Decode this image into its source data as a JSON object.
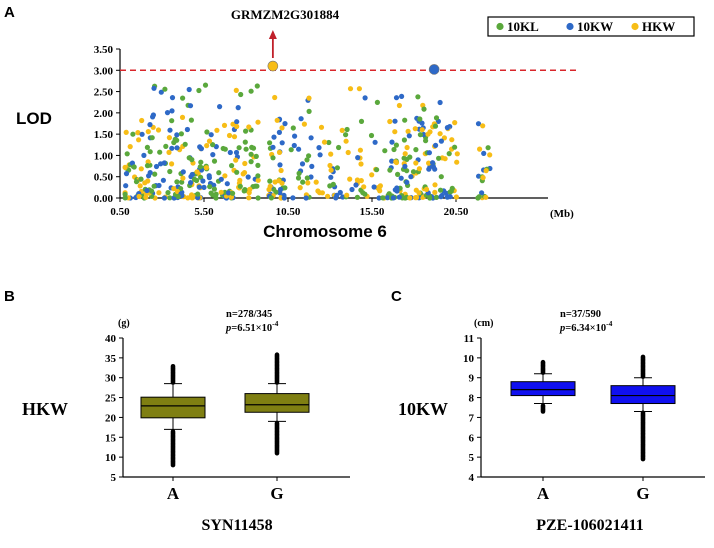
{
  "chart_data": [
    {
      "panel": "A",
      "type": "scatter",
      "title": "",
      "xlabel": "Chromosome 6",
      "x_unit": "(Mb)",
      "ylabel": "LOD",
      "xlim": [
        0.5,
        25.5
      ],
      "ylim": [
        0,
        3.5
      ],
      "x_ticks": [
        "0.50",
        "5.50",
        "10.50",
        "15.50",
        "20.50"
      ],
      "y_ticks": [
        "0.00",
        "0.50",
        "1.00",
        "1.50",
        "2.00",
        "2.50",
        "3.00",
        "3.50"
      ],
      "threshold": 3.0,
      "series": [
        {
          "name": "10KL",
          "color": "#5aa83c"
        },
        {
          "name": "10KW",
          "color": "#2e69c7"
        },
        {
          "name": "HKW",
          "color": "#f7bd16"
        }
      ],
      "highlight_points": [
        {
          "series": "HKW",
          "x": 9.6,
          "y": 3.1
        },
        {
          "series": "10KW",
          "x": 19.2,
          "y": 3.02
        }
      ],
      "annotation": {
        "label": "GRMZM2G301884",
        "x": 9.6
      }
    },
    {
      "panel": "B",
      "type": "box",
      "ylabel": "HKW",
      "unit": "(g)",
      "xlabel": "SYN11458",
      "ylim": [
        5,
        40
      ],
      "y_ticks": [
        "5",
        "10",
        "15",
        "20",
        "25",
        "30",
        "35",
        "40"
      ],
      "categories": [
        "A",
        "G"
      ],
      "n_label": "n=278/345",
      "p_label_prefix": "p",
      "p_label_value": "=6.51×10",
      "p_label_exp": "-4",
      "boxes": [
        {
          "category": "A",
          "whisker_low": 17,
          "q1": 19.9,
          "median": 22.9,
          "q3": 25.1,
          "whisker_high": 28.5
        },
        {
          "category": "G",
          "whisker_low": 19,
          "q1": 21.3,
          "median": 23.2,
          "q3": 26.0,
          "whisker_high": 28.5
        }
      ],
      "outlier_range": [
        {
          "category": "A",
          "low": [
            8,
            17
          ],
          "high": [
            28.5,
            33
          ]
        },
        {
          "category": "G",
          "low": [
            11,
            19
          ],
          "high": [
            28.5,
            36
          ]
        }
      ],
      "color": "#7f7f12"
    },
    {
      "panel": "C",
      "type": "box",
      "ylabel": "10KW",
      "unit": "(cm)",
      "xlabel": "PZE-106021411",
      "ylim": [
        4,
        11
      ],
      "y_ticks": [
        "4",
        "5",
        "6",
        "7",
        "8",
        "9",
        "10",
        "11"
      ],
      "categories": [
        "A",
        "G"
      ],
      "n_label": "n=37/590",
      "p_label_prefix": "p",
      "p_label_value": "=6.34×10",
      "p_label_exp": "-4",
      "boxes": [
        {
          "category": "A",
          "whisker_low": 7.7,
          "q1": 8.1,
          "median": 8.4,
          "q3": 8.8,
          "whisker_high": 9.2
        },
        {
          "category": "G",
          "whisker_low": 7.3,
          "q1": 7.7,
          "median": 8.1,
          "q3": 8.6,
          "whisker_high": 9.0
        }
      ],
      "outlier_range": [
        {
          "category": "A",
          "low": [
            7.3,
            7.7
          ],
          "high": [
            9.2,
            9.8
          ]
        },
        {
          "category": "G",
          "low": [
            4.9,
            7.3
          ],
          "high": [
            9.0,
            10.1
          ]
        }
      ],
      "color": "#1010f0"
    }
  ]
}
